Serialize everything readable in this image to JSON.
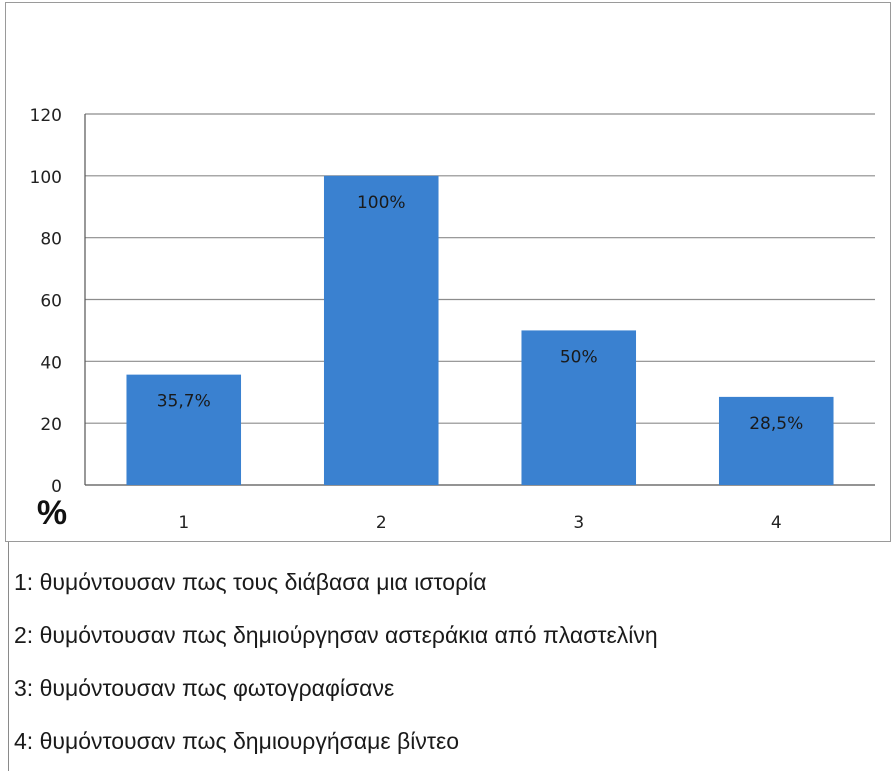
{
  "chart_data": {
    "type": "bar",
    "categories": [
      "1",
      "2",
      "3",
      "4"
    ],
    "values": [
      35.7,
      100,
      50,
      28.5
    ],
    "data_labels": [
      "35,7%",
      "100%",
      "50%",
      "28,5%"
    ],
    "ylim": [
      0,
      120
    ],
    "yticks": [
      0,
      20,
      40,
      60,
      80,
      100,
      120
    ],
    "ylabel": "%",
    "xlabel": "",
    "title": "",
    "grid": true,
    "bar_color": "#3a81d0"
  },
  "legend": [
    "1: θυμόντουσαν πως τους διάβασα μια ιστορία",
    "2: θυμόντουσαν πως δημιούργησαν αστεράκια από πλαστελίνη",
    "3: θυμόντουσαν πως φωτογραφίσανε",
    "4: θυμόντουσαν πως δημιουργήσαμε βίντεο"
  ]
}
